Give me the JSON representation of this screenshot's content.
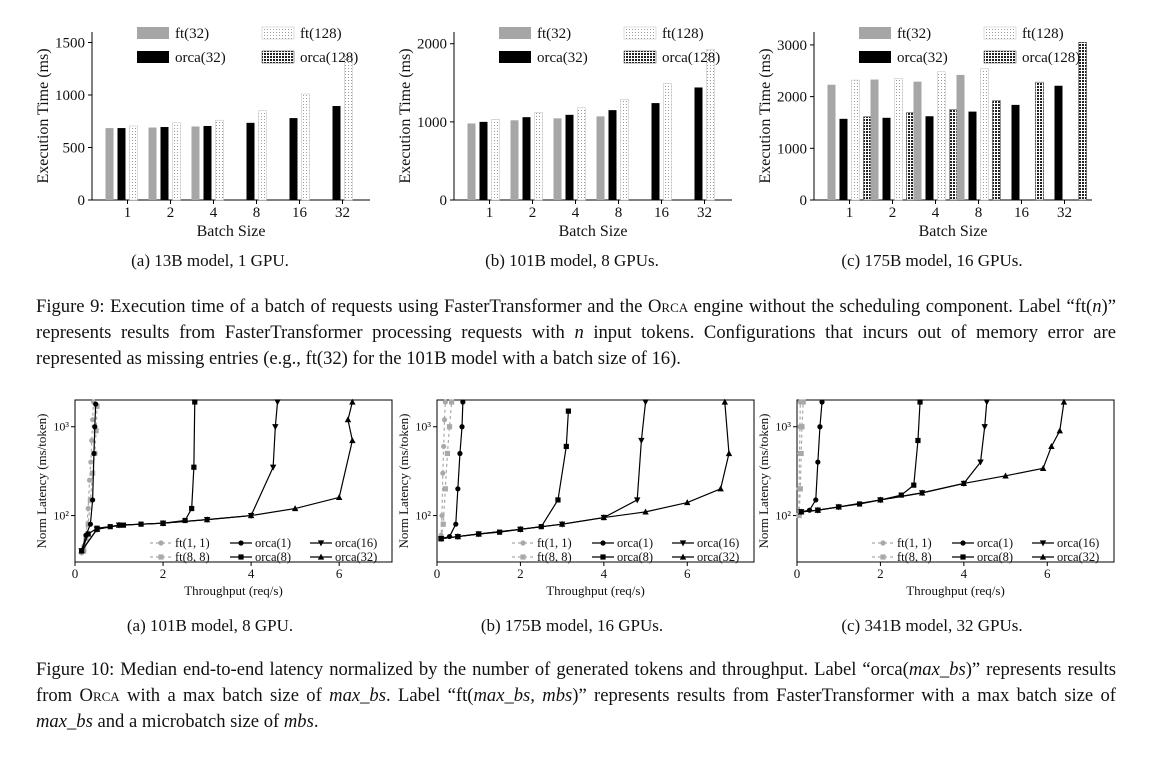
{
  "fig9": {
    "caption": "Figure 9: Execution time of a batch of requests using FasterTransformer and the ORCA engine without the scheduling component. Label “ft(n)” represents results from FasterTransformer processing requests with n input tokens. Configurations that incurs out of memory error are represented as missing entries (e.g., ft(32) for the 101B model with a batch size of 16).",
    "cap_parts": {
      "p1": "Figure 9: Execution time of a batch of requests using FasterTransformer and the O",
      "p1sc": "rca",
      "p2": " engine without the scheduling component. Label “ft(",
      "p2i": "n",
      "p3": ")” represents results from FasterTransformer processing requests with ",
      "p3i": "n",
      "p4": " input tokens. Configurations that incurs out of memory error are represented as missing entries (e.g., ft(32) for the 101B model with a batch size of 16)."
    }
  },
  "fig10": {
    "cap_parts": {
      "p1": "Figure 10: Median end-to-end latency normalized by the number of generated tokens and throughput. Label “orca(",
      "p1i": "max_bs",
      "p2": ")” represents results from O",
      "p2sc": "rca",
      "p3": " with a max batch size of ",
      "p3i": "max_bs",
      "p4": ". Label “ft(",
      "p4i": "max_bs, mbs",
      "p5": ")” represents results from FasterTransformer with a max batch size of ",
      "p5i": "max_bs",
      "p6": " and a microbatch size of ",
      "p6i": "mbs",
      "p7": "."
    }
  },
  "chart_data": [
    {
      "type": "bar",
      "subcaption": "(a) 13B model, 1 GPU.",
      "xlabel": "Batch Size",
      "ylabel": "Execution Time (ms)",
      "ylim": [
        0,
        1600
      ],
      "yticks": [
        0,
        500,
        1000,
        1500
      ],
      "categories": [
        "1",
        "2",
        "4",
        "8",
        "16",
        "32"
      ],
      "series": [
        {
          "name": "ft(32)",
          "values": [
            685,
            690,
            700,
            null,
            null,
            null
          ]
        },
        {
          "name": "orca(32)",
          "values": [
            685,
            695,
            705,
            735,
            780,
            895
          ]
        },
        {
          "name": "ft(128)",
          "values": [
            705,
            735,
            760,
            850,
            1010,
            1380
          ]
        },
        {
          "name": "orca(128)",
          "values": [
            null,
            null,
            null,
            null,
            null,
            null
          ]
        }
      ]
    },
    {
      "type": "bar",
      "subcaption": "(b) 101B model, 8 GPUs.",
      "xlabel": "Batch Size",
      "ylabel": "Execution Time (ms)",
      "ylim": [
        0,
        2150
      ],
      "yticks": [
        0,
        1000,
        2000
      ],
      "categories": [
        "1",
        "2",
        "4",
        "8",
        "16",
        "32"
      ],
      "series": [
        {
          "name": "ft(32)",
          "values": [
            980,
            1020,
            1045,
            1070,
            null,
            null
          ]
        },
        {
          "name": "orca(32)",
          "values": [
            1000,
            1060,
            1090,
            1150,
            1240,
            1440
          ]
        },
        {
          "name": "ft(128)",
          "values": [
            1030,
            1120,
            1180,
            1290,
            1490,
            1930
          ]
        },
        {
          "name": "orca(128)",
          "values": [
            null,
            null,
            null,
            null,
            null,
            null
          ]
        }
      ]
    },
    {
      "type": "bar",
      "subcaption": "(c) 175B model, 16 GPUs.",
      "xlabel": "Batch Size",
      "ylabel": "Execution Time (ms)",
      "ylim": [
        0,
        3250
      ],
      "yticks": [
        0,
        1000,
        2000,
        3000
      ],
      "categories": [
        "1",
        "2",
        "4",
        "8",
        "16",
        "32"
      ],
      "series": [
        {
          "name": "ft(32)",
          "values": [
            2230,
            2330,
            2290,
            2420,
            null,
            null
          ]
        },
        {
          "name": "orca(32)",
          "values": [
            1570,
            1590,
            1620,
            1710,
            1840,
            2210
          ]
        },
        {
          "name": "ft(128)",
          "values": [
            2320,
            2350,
            2480,
            2540,
            null,
            null
          ]
        },
        {
          "name": "orca(128)",
          "values": [
            1610,
            1690,
            1750,
            1920,
            2280,
            3050
          ]
        }
      ]
    },
    {
      "type": "line",
      "subcaption": "(a) 101B model, 8 GPU.",
      "xlabel": "Throughput (req/s)",
      "ylabel": "Norm Latency (ms/token)",
      "yscale": "log",
      "xlim": [
        0,
        7.2
      ],
      "ylim": [
        30,
        2000
      ],
      "xticks": [
        0,
        2,
        4,
        6
      ],
      "yticks": [
        {
          "v": 100,
          "label": "10²"
        },
        {
          "v": 1000,
          "label": "10³"
        }
      ],
      "series": [
        {
          "name": "ft(1, 1)",
          "x": [
            0.15,
            0.2,
            0.25,
            0.3,
            0.33,
            0.36,
            0.38,
            0.4,
            0.42
          ],
          "y": [
            38,
            45,
            60,
            120,
            250,
            400,
            700,
            1200,
            1900
          ]
        },
        {
          "name": "ft(8, 8)",
          "x": [
            0.2,
            0.25,
            0.3,
            0.35,
            0.4,
            0.45,
            0.48,
            0.5
          ],
          "y": [
            40,
            55,
            80,
            150,
            300,
            500,
            900,
            1700
          ]
        },
        {
          "name": "orca(1)",
          "x": [
            0.15,
            0.25,
            0.35,
            0.4,
            0.43,
            0.45,
            0.47
          ],
          "y": [
            40,
            60,
            80,
            150,
            500,
            1000,
            1800
          ]
        },
        {
          "name": "orca(8)",
          "x": [
            0.15,
            0.3,
            0.5,
            0.8,
            1.1,
            1.5,
            2.0,
            2.5,
            2.65,
            2.7,
            2.72
          ],
          "y": [
            40,
            62,
            72,
            75,
            78,
            80,
            82,
            88,
            120,
            350,
            1900
          ]
        },
        {
          "name": "orca(16)",
          "x": [
            0.15,
            0.5,
            1.0,
            2.0,
            3.0,
            4.0,
            4.5,
            4.55,
            4.6
          ],
          "y": [
            40,
            70,
            78,
            82,
            90,
            100,
            350,
            1000,
            1900
          ]
        },
        {
          "name": "orca(32)",
          "x": [
            0.15,
            0.5,
            1.0,
            2.0,
            3.0,
            4.0,
            5.0,
            6.0,
            6.3,
            6.2,
            6.3
          ],
          "y": [
            40,
            70,
            78,
            82,
            90,
            100,
            120,
            160,
            700,
            1200,
            1900
          ]
        }
      ]
    },
    {
      "type": "line",
      "subcaption": "(b) 175B model, 16 GPUs.",
      "xlabel": "Throughput (req/s)",
      "ylabel": "Norm Latency (ms/token)",
      "yscale": "log",
      "xlim": [
        0,
        7.6
      ],
      "ylim": [
        30,
        2000
      ],
      "xticks": [
        0,
        2,
        4,
        6
      ],
      "yticks": [
        {
          "v": 100,
          "label": "10²"
        },
        {
          "v": 1000,
          "label": "10³"
        }
      ],
      "series": [
        {
          "name": "ft(1, 1)",
          "x": [
            0.08,
            0.1,
            0.12,
            0.14,
            0.16,
            0.18,
            0.2
          ],
          "y": [
            55,
            60,
            100,
            300,
            600,
            1200,
            1900
          ]
        },
        {
          "name": "ft(8, 8)",
          "x": [
            0.1,
            0.15,
            0.2,
            0.25,
            0.3,
            0.35
          ],
          "y": [
            55,
            80,
            200,
            500,
            1000,
            1900
          ]
        },
        {
          "name": "orca(1)",
          "x": [
            0.1,
            0.3,
            0.45,
            0.5,
            0.55,
            0.6,
            0.62
          ],
          "y": [
            55,
            58,
            80,
            200,
            500,
            1000,
            1900
          ]
        },
        {
          "name": "orca(8)",
          "x": [
            0.1,
            0.5,
            1.0,
            1.5,
            2.0,
            2.5,
            2.9,
            3.1,
            3.15
          ],
          "y": [
            55,
            58,
            62,
            65,
            70,
            75,
            150,
            600,
            1500
          ]
        },
        {
          "name": "orca(16)",
          "x": [
            0.1,
            0.5,
            1.0,
            2.0,
            3.0,
            4.0,
            4.8,
            4.9,
            5.0
          ],
          "y": [
            55,
            58,
            62,
            70,
            80,
            95,
            150,
            700,
            1900
          ]
        },
        {
          "name": "orca(32)",
          "x": [
            0.1,
            0.5,
            1.0,
            2.0,
            3.0,
            4.0,
            5.0,
            6.0,
            6.8,
            7.0,
            6.9
          ],
          "y": [
            55,
            58,
            62,
            70,
            80,
            95,
            110,
            140,
            200,
            500,
            1900
          ]
        }
      ]
    },
    {
      "type": "line",
      "subcaption": "(c) 341B model, 32 GPUs.",
      "xlabel": "Throughput (req/s)",
      "ylabel": "Norm Latency (ms/token)",
      "yscale": "log",
      "xlim": [
        0,
        7.6
      ],
      "ylim": [
        30,
        2000
      ],
      "xticks": [
        0,
        2,
        4,
        6
      ],
      "yticks": [
        {
          "v": 100,
          "label": "10²"
        },
        {
          "v": 1000,
          "label": "10³"
        }
      ],
      "series": [
        {
          "name": "ft(1, 1)",
          "x": [
            0.04,
            0.05,
            0.06,
            0.07,
            0.08
          ],
          "y": [
            100,
            200,
            500,
            1000,
            1900
          ]
        },
        {
          "name": "ft(8, 8)",
          "x": [
            0.05,
            0.08,
            0.1,
            0.12,
            0.15
          ],
          "y": [
            100,
            200,
            500,
            1000,
            1900
          ]
        },
        {
          "name": "orca(1)",
          "x": [
            0.1,
            0.3,
            0.45,
            0.5,
            0.55,
            0.6
          ],
          "y": [
            110,
            115,
            150,
            400,
            1000,
            1900
          ]
        },
        {
          "name": "orca(8)",
          "x": [
            0.1,
            0.5,
            1.0,
            1.5,
            2.0,
            2.5,
            2.8,
            2.9,
            2.95
          ],
          "y": [
            110,
            115,
            125,
            135,
            150,
            170,
            220,
            700,
            1900
          ]
        },
        {
          "name": "orca(16)",
          "x": [
            0.1,
            0.5,
            1.0,
            2.0,
            3.0,
            4.0,
            4.4,
            4.5,
            4.55
          ],
          "y": [
            110,
            115,
            125,
            150,
            180,
            230,
            400,
            1000,
            1900
          ]
        },
        {
          "name": "orca(32)",
          "x": [
            0.1,
            0.5,
            1.0,
            2.0,
            3.0,
            4.0,
            5.0,
            5.9,
            6.1,
            6.3,
            6.4
          ],
          "y": [
            110,
            115,
            125,
            150,
            180,
            230,
            280,
            340,
            600,
            900,
            1900
          ]
        }
      ]
    }
  ],
  "styles": {
    "ft32_color": "#a6a6a6",
    "orca32_color": "#000000",
    "line_gray": "#a9a9a9",
    "line_black": "#000000"
  }
}
